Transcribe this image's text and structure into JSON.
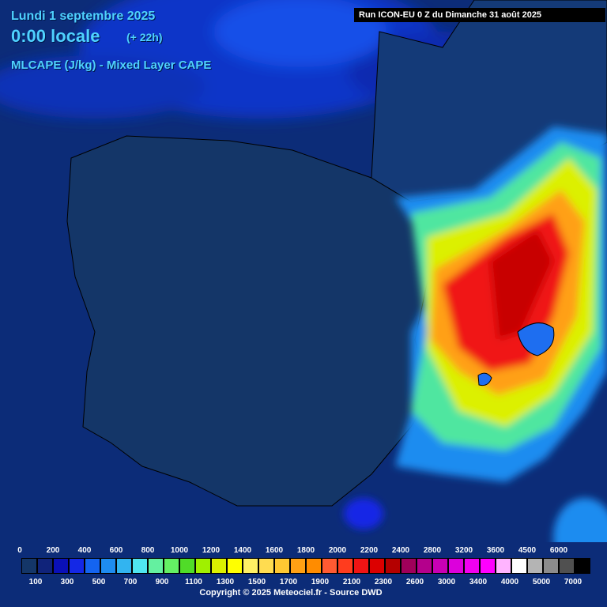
{
  "header": {
    "date": "Lundi 1 septembre 2025",
    "time": "0:00 locale",
    "offset": "(+ 22h)",
    "variable": "MLCAPE (J/kg) - Mixed Layer CAPE",
    "run": "Run ICON-EU 0 Z du Dimanche 31 août 2025"
  },
  "legend": {
    "labels": [
      0,
      100,
      200,
      300,
      400,
      500,
      600,
      700,
      800,
      900,
      1000,
      1100,
      1200,
      1300,
      1400,
      1500,
      1600,
      1700,
      1800,
      1900,
      2000,
      2100,
      2200,
      2300,
      2400,
      2600,
      2800,
      3000,
      3200,
      3400,
      3600,
      4000,
      4500,
      5000,
      6000,
      7000
    ],
    "colors": [
      "#143668",
      "#10237a",
      "#0a10b8",
      "#1428e6",
      "#1464f0",
      "#1e8cf0",
      "#32b4f0",
      "#50e6f0",
      "#64f0a0",
      "#64f064",
      "#50dc28",
      "#a0f000",
      "#dcf000",
      "#ffff00",
      "#fff064",
      "#ffdc50",
      "#ffc832",
      "#ffa014",
      "#ff8c00",
      "#ff5a32",
      "#ff3c1e",
      "#f01414",
      "#dc0000",
      "#b40000",
      "#a0005a",
      "#b4008c",
      "#c800b4",
      "#dc00dc",
      "#f000f0",
      "#ff00ff",
      "#ffb4ff",
      "#ffffff",
      "#b4b4b4",
      "#8c8c8c",
      "#505050",
      "#000000"
    ]
  },
  "footer": {
    "copyright": "Copyright © 2025 Meteociel.fr - Source DWD"
  }
}
